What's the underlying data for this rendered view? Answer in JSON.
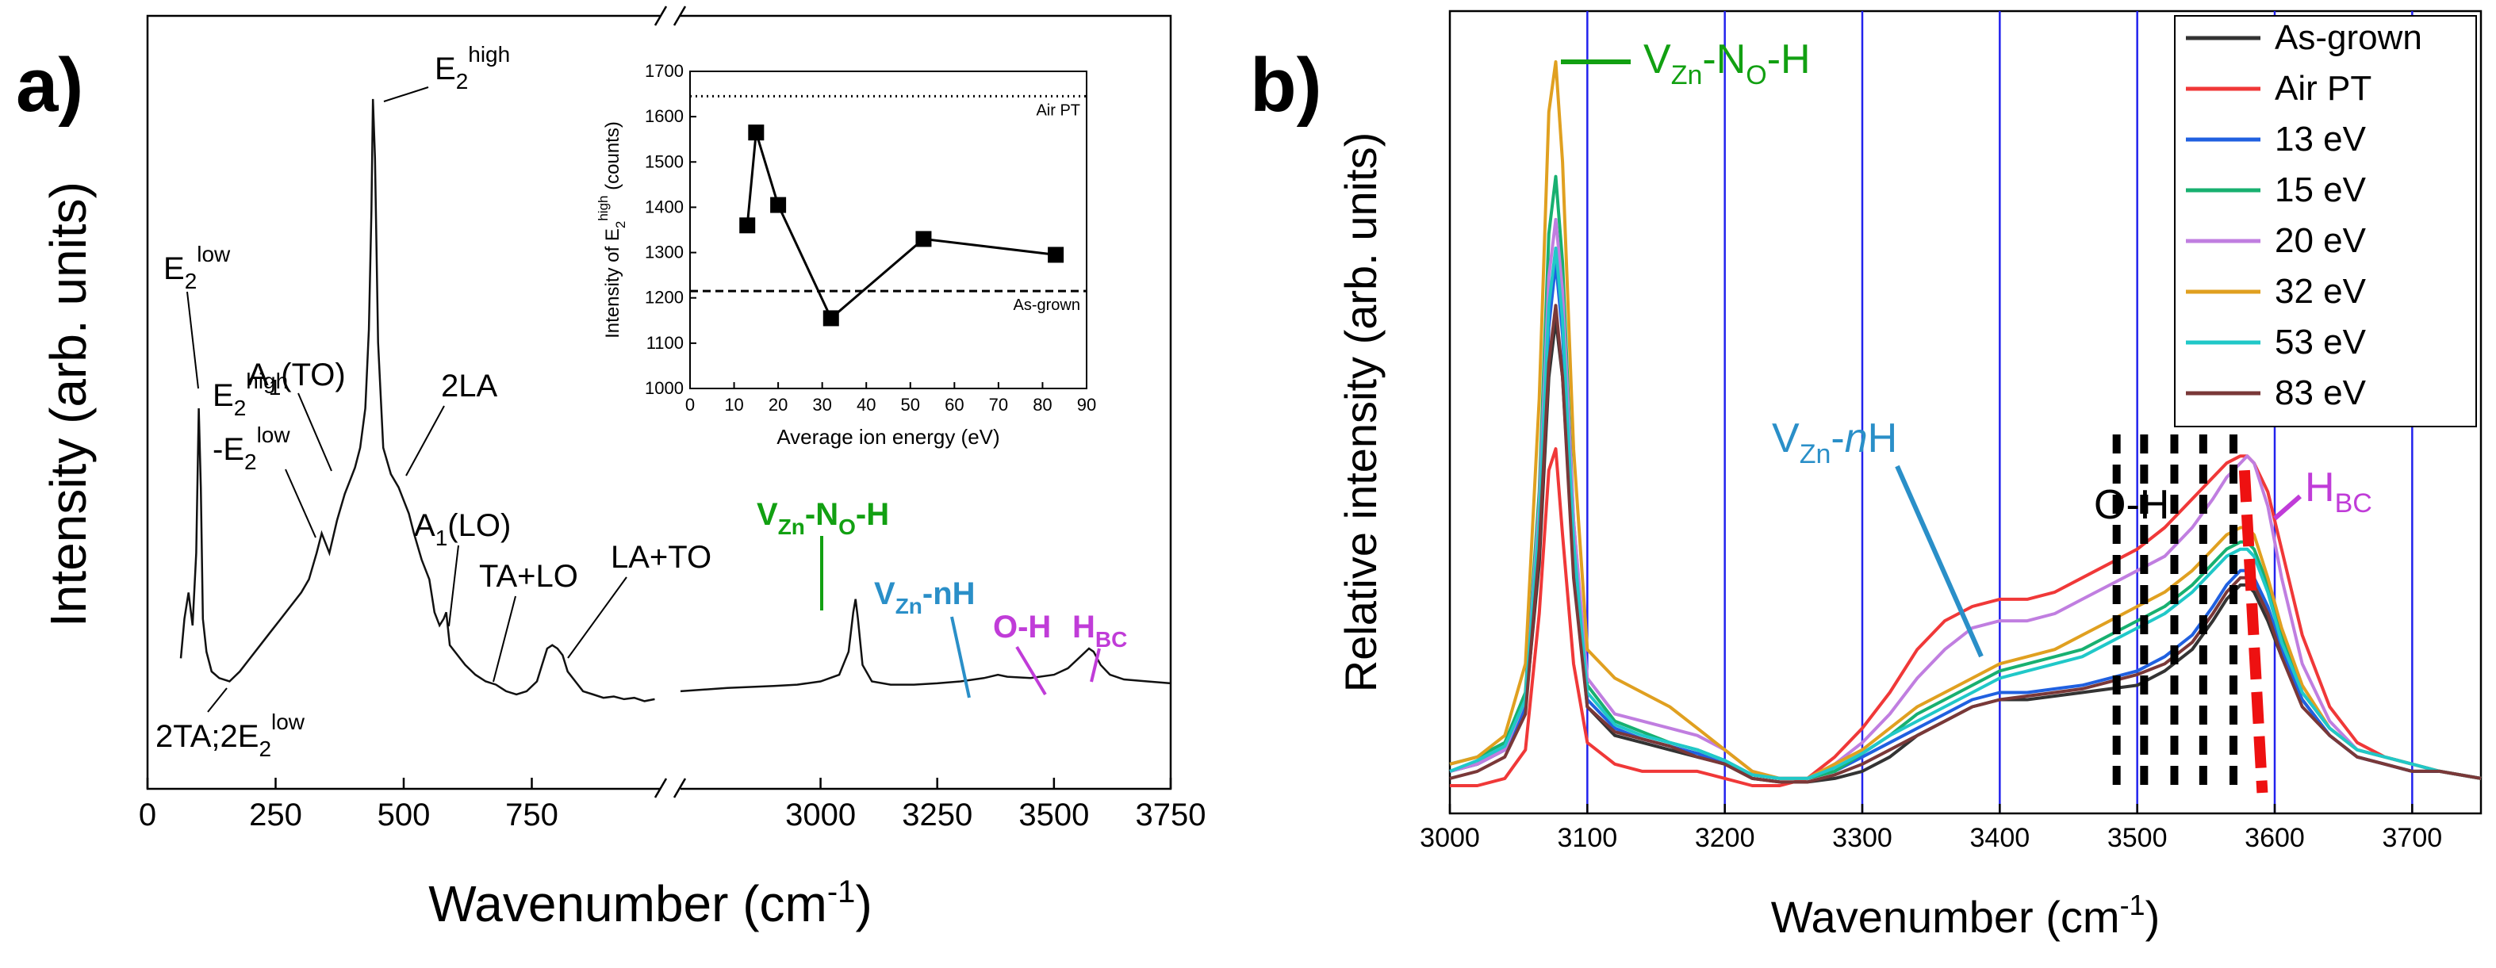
{
  "panel_a": {
    "label": "a)"
  },
  "panel_b": {
    "label": "b)"
  },
  "colors": {
    "green": "#12a012",
    "blue": "#2a8fc8",
    "magenta": "#c03cd8",
    "vline": "#2222ee",
    "red_dash": "#ee1111",
    "black": "#111111"
  },
  "chart_data": [
    {
      "id": "a",
      "type": "line",
      "title": "",
      "xlabel_main": "Wavenumber (cm",
      "xlabel_sup": "-1",
      "xlabel_end": ")",
      "ylabel": "Intensity (arb. units)",
      "break": {
        "left_xlim": [
          0,
          1000
        ],
        "right_xlim": [
          2700,
          3750
        ]
      },
      "ylim": [
        0,
        1
      ],
      "xticks": [
        0,
        250,
        500,
        750,
        3000,
        3250,
        3500,
        3750
      ],
      "xtick_labels": [
        "0",
        "250",
        "500",
        "750",
        "3000",
        "3250",
        "3500",
        "3750"
      ],
      "spectrum_low": {
        "x": [
          65,
          72,
          80,
          88,
          95,
          100,
          104,
          108,
          115,
          125,
          140,
          160,
          180,
          200,
          220,
          240,
          260,
          280,
          300,
          315,
          330,
          340,
          355,
          370,
          385,
          395,
          405,
          415,
          425,
          432,
          437,
          440,
          444,
          450,
          460,
          475,
          490,
          500,
          510,
          520,
          535,
          550,
          560,
          570,
          578,
          583,
          590,
          600,
          620,
          640,
          660,
          680,
          700,
          720,
          740,
          760,
          770,
          780,
          790,
          800,
          810,
          820,
          835,
          850,
          870,
          890,
          910,
          930,
          950,
          970,
          990
        ],
        "y": [
          0.12,
          0.18,
          0.22,
          0.17,
          0.28,
          0.5,
          0.38,
          0.18,
          0.13,
          0.1,
          0.09,
          0.085,
          0.1,
          0.12,
          0.14,
          0.16,
          0.18,
          0.2,
          0.22,
          0.24,
          0.28,
          0.31,
          0.28,
          0.33,
          0.37,
          0.39,
          0.41,
          0.44,
          0.5,
          0.62,
          0.8,
          0.97,
          0.88,
          0.6,
          0.44,
          0.4,
          0.38,
          0.36,
          0.34,
          0.31,
          0.27,
          0.24,
          0.19,
          0.17,
          0.18,
          0.19,
          0.14,
          0.13,
          0.11,
          0.095,
          0.085,
          0.08,
          0.07,
          0.065,
          0.07,
          0.085,
          0.11,
          0.135,
          0.14,
          0.135,
          0.125,
          0.1,
          0.085,
          0.07,
          0.065,
          0.06,
          0.062,
          0.058,
          0.06,
          0.055,
          0.058
        ]
      },
      "spectrum_high": {
        "x": [
          2700,
          2800,
          2900,
          2950,
          3000,
          3040,
          3060,
          3070,
          3075,
          3080,
          3090,
          3110,
          3150,
          3200,
          3250,
          3300,
          3350,
          3380,
          3400,
          3450,
          3500,
          3530,
          3560,
          3575,
          3585,
          3600,
          3620,
          3650,
          3700,
          3750
        ],
        "y": [
          0.07,
          0.075,
          0.078,
          0.08,
          0.085,
          0.095,
          0.13,
          0.19,
          0.21,
          0.18,
          0.11,
          0.085,
          0.08,
          0.08,
          0.082,
          0.085,
          0.09,
          0.095,
          0.092,
          0.09,
          0.095,
          0.105,
          0.125,
          0.135,
          0.13,
          0.11,
          0.095,
          0.088,
          0.085,
          0.082
        ]
      },
      "peak_labels": [
        {
          "main": "E",
          "sub": "2",
          "sup": "low",
          "pre": ""
        },
        {
          "main": "E",
          "sub": "2",
          "sup": "high",
          "pre": ""
        },
        {
          "main": "-E",
          "sub": "2",
          "sup": "low",
          "pre": ""
        },
        {
          "main": "A",
          "sub": "1",
          "tail": "(TO)"
        },
        {
          "main": "E",
          "sub": "2",
          "sup": "high"
        },
        {
          "main": "2LA"
        },
        {
          "main": "A",
          "sub": "1",
          "tail": "(LO)"
        },
        {
          "main": "TA+LO"
        },
        {
          "main": "LA+TO"
        },
        {
          "main": "2TA;2E",
          "sub": "2",
          "sup": "low"
        }
      ],
      "colored_labels": {
        "vzn_no_h": {
          "a": "V",
          "b": "Zn",
          "c": "-N",
          "d": "O",
          "e": "-H"
        },
        "vzn_nh": {
          "a": "V",
          "b": "Zn",
          "c": "-nH"
        },
        "oh": "O-H",
        "hbc": {
          "a": "H",
          "b": "BC"
        }
      },
      "inset": {
        "type": "scatter-line",
        "xlabel": "Average ion energy (eV)",
        "ylabel": {
          "a": "Intensity of E",
          "b": "2",
          "c": "high",
          "d": " (counts)"
        },
        "xlim": [
          0,
          90
        ],
        "ylim": [
          1000,
          1700
        ],
        "xticks": [
          "0",
          "10",
          "20",
          "30",
          "40",
          "50",
          "60",
          "70",
          "80",
          "90"
        ],
        "yticks": [
          "1000",
          "1100",
          "1200",
          "1300",
          "1400",
          "1500",
          "1600",
          "1700"
        ],
        "x": [
          13,
          15,
          20,
          32,
          53,
          83
        ],
        "values": [
          1360,
          1565,
          1405,
          1155,
          1330,
          1295
        ],
        "ref_lines": [
          {
            "name": "Air PT",
            "value": 1645,
            "style": "dotted"
          },
          {
            "name": "As-grown",
            "value": 1215,
            "style": "dashed"
          }
        ]
      }
    },
    {
      "id": "b",
      "type": "line",
      "xlabel_main": "Wavenumber (cm",
      "xlabel_sup": "-1",
      "xlabel_end": ")",
      "ylabel": "Relative intensity (arb. units)",
      "xlim": [
        3000,
        3750
      ],
      "ylim": [
        0,
        1
      ],
      "xticks": [
        "3000",
        "3100",
        "3200",
        "3300",
        "3400",
        "3500",
        "3600",
        "3700"
      ],
      "vlines": [
        3100,
        3200,
        3300,
        3400,
        3500,
        3600,
        3700
      ],
      "oh_dashes": [
        3485,
        3505,
        3527,
        3548,
        3570
      ],
      "red_trend": [
        [
          3578,
          0.45
        ],
        [
          3591,
          0.0
        ]
      ],
      "labels": {
        "vzn_no_h": {
          "a": "V",
          "b": "Zn",
          "c": "-N",
          "d": "O",
          "e": "-H"
        },
        "vzn_nh": {
          "a": "V",
          "b": "Zn",
          "c": "-",
          "d": "n",
          "e": "H"
        },
        "oh": "O-H",
        "hbc": {
          "a": "H",
          "b": "BC"
        }
      },
      "x": [
        3000,
        3020,
        3040,
        3055,
        3065,
        3072,
        3077,
        3082,
        3090,
        3100,
        3120,
        3140,
        3160,
        3180,
        3200,
        3220,
        3240,
        3260,
        3280,
        3300,
        3320,
        3340,
        3360,
        3380,
        3400,
        3420,
        3440,
        3460,
        3480,
        3500,
        3520,
        3540,
        3555,
        3565,
        3575,
        3580,
        3585,
        3595,
        3605,
        3620,
        3640,
        3660,
        3680,
        3700,
        3720,
        3750
      ],
      "series": [
        {
          "name": "As-grown",
          "color": "#333333",
          "values": [
            0.03,
            0.04,
            0.06,
            0.12,
            0.32,
            0.58,
            0.66,
            0.58,
            0.32,
            0.12,
            0.08,
            0.07,
            0.06,
            0.05,
            0.04,
            0.02,
            0.015,
            0.015,
            0.02,
            0.03,
            0.05,
            0.08,
            0.1,
            0.12,
            0.13,
            0.13,
            0.135,
            0.14,
            0.145,
            0.15,
            0.17,
            0.2,
            0.24,
            0.27,
            0.29,
            0.29,
            0.28,
            0.24,
            0.19,
            0.13,
            0.08,
            0.05,
            0.04,
            0.03,
            0.03,
            0.02
          ]
        },
        {
          "name": "Air PT",
          "color": "#f03838",
          "values": [
            0.01,
            0.01,
            0.02,
            0.06,
            0.25,
            0.45,
            0.48,
            0.36,
            0.18,
            0.07,
            0.04,
            0.03,
            0.03,
            0.03,
            0.02,
            0.01,
            0.01,
            0.02,
            0.05,
            0.09,
            0.14,
            0.2,
            0.24,
            0.26,
            0.27,
            0.27,
            0.28,
            0.3,
            0.32,
            0.34,
            0.37,
            0.41,
            0.44,
            0.46,
            0.47,
            0.47,
            0.46,
            0.42,
            0.34,
            0.22,
            0.12,
            0.07,
            0.05,
            0.04,
            0.03,
            0.02
          ]
        },
        {
          "name": "13 eV",
          "color": "#2060e0",
          "values": [
            0.03,
            0.04,
            0.06,
            0.12,
            0.35,
            0.65,
            0.74,
            0.64,
            0.34,
            0.13,
            0.09,
            0.075,
            0.065,
            0.055,
            0.04,
            0.025,
            0.02,
            0.02,
            0.03,
            0.05,
            0.07,
            0.09,
            0.11,
            0.13,
            0.14,
            0.14,
            0.145,
            0.15,
            0.16,
            0.17,
            0.19,
            0.22,
            0.26,
            0.29,
            0.31,
            0.31,
            0.3,
            0.26,
            0.2,
            0.13,
            0.08,
            0.05,
            0.04,
            0.03,
            0.03,
            0.02
          ]
        },
        {
          "name": "15 eV",
          "color": "#18b070",
          "values": [
            0.04,
            0.05,
            0.07,
            0.14,
            0.42,
            0.78,
            0.86,
            0.74,
            0.38,
            0.15,
            0.1,
            0.085,
            0.07,
            0.06,
            0.045,
            0.025,
            0.02,
            0.02,
            0.03,
            0.055,
            0.08,
            0.11,
            0.13,
            0.15,
            0.17,
            0.18,
            0.19,
            0.2,
            0.22,
            0.24,
            0.26,
            0.29,
            0.32,
            0.34,
            0.35,
            0.35,
            0.34,
            0.29,
            0.22,
            0.14,
            0.09,
            0.06,
            0.05,
            0.04,
            0.03,
            0.02
          ]
        },
        {
          "name": "20 eV",
          "color": "#c07ee0",
          "values": [
            0.03,
            0.04,
            0.06,
            0.13,
            0.4,
            0.72,
            0.8,
            0.7,
            0.38,
            0.16,
            0.11,
            0.1,
            0.09,
            0.08,
            0.06,
            0.03,
            0.02,
            0.02,
            0.04,
            0.07,
            0.11,
            0.16,
            0.2,
            0.23,
            0.24,
            0.24,
            0.25,
            0.27,
            0.29,
            0.31,
            0.33,
            0.37,
            0.41,
            0.44,
            0.46,
            0.47,
            0.46,
            0.4,
            0.3,
            0.18,
            0.1,
            0.06,
            0.05,
            0.04,
            0.03,
            0.02
          ]
        },
        {
          "name": "32 eV",
          "color": "#e0a020",
          "values": [
            0.04,
            0.05,
            0.08,
            0.18,
            0.55,
            0.95,
            1.02,
            0.88,
            0.48,
            0.2,
            0.16,
            0.14,
            0.12,
            0.09,
            0.06,
            0.03,
            0.02,
            0.02,
            0.04,
            0.06,
            0.09,
            0.12,
            0.14,
            0.16,
            0.18,
            0.19,
            0.2,
            0.22,
            0.24,
            0.26,
            0.28,
            0.31,
            0.34,
            0.36,
            0.37,
            0.37,
            0.36,
            0.3,
            0.23,
            0.15,
            0.09,
            0.06,
            0.05,
            0.04,
            0.03,
            0.02
          ]
        },
        {
          "name": "53 eV",
          "color": "#20c8c8",
          "values": [
            0.03,
            0.045,
            0.065,
            0.13,
            0.38,
            0.68,
            0.76,
            0.66,
            0.35,
            0.14,
            0.095,
            0.08,
            0.07,
            0.06,
            0.045,
            0.025,
            0.02,
            0.02,
            0.035,
            0.055,
            0.08,
            0.1,
            0.12,
            0.14,
            0.16,
            0.17,
            0.18,
            0.19,
            0.21,
            0.23,
            0.25,
            0.28,
            0.31,
            0.33,
            0.34,
            0.34,
            0.33,
            0.28,
            0.21,
            0.14,
            0.09,
            0.06,
            0.05,
            0.04,
            0.03,
            0.02
          ]
        },
        {
          "name": "83 eV",
          "color": "#7a3838",
          "values": [
            0.02,
            0.03,
            0.05,
            0.11,
            0.34,
            0.6,
            0.68,
            0.58,
            0.3,
            0.12,
            0.085,
            0.075,
            0.065,
            0.05,
            0.04,
            0.02,
            0.015,
            0.015,
            0.025,
            0.04,
            0.06,
            0.08,
            0.1,
            0.12,
            0.13,
            0.135,
            0.14,
            0.145,
            0.155,
            0.165,
            0.18,
            0.21,
            0.25,
            0.28,
            0.3,
            0.3,
            0.29,
            0.25,
            0.19,
            0.12,
            0.08,
            0.05,
            0.04,
            0.03,
            0.03,
            0.02
          ]
        }
      ]
    }
  ]
}
